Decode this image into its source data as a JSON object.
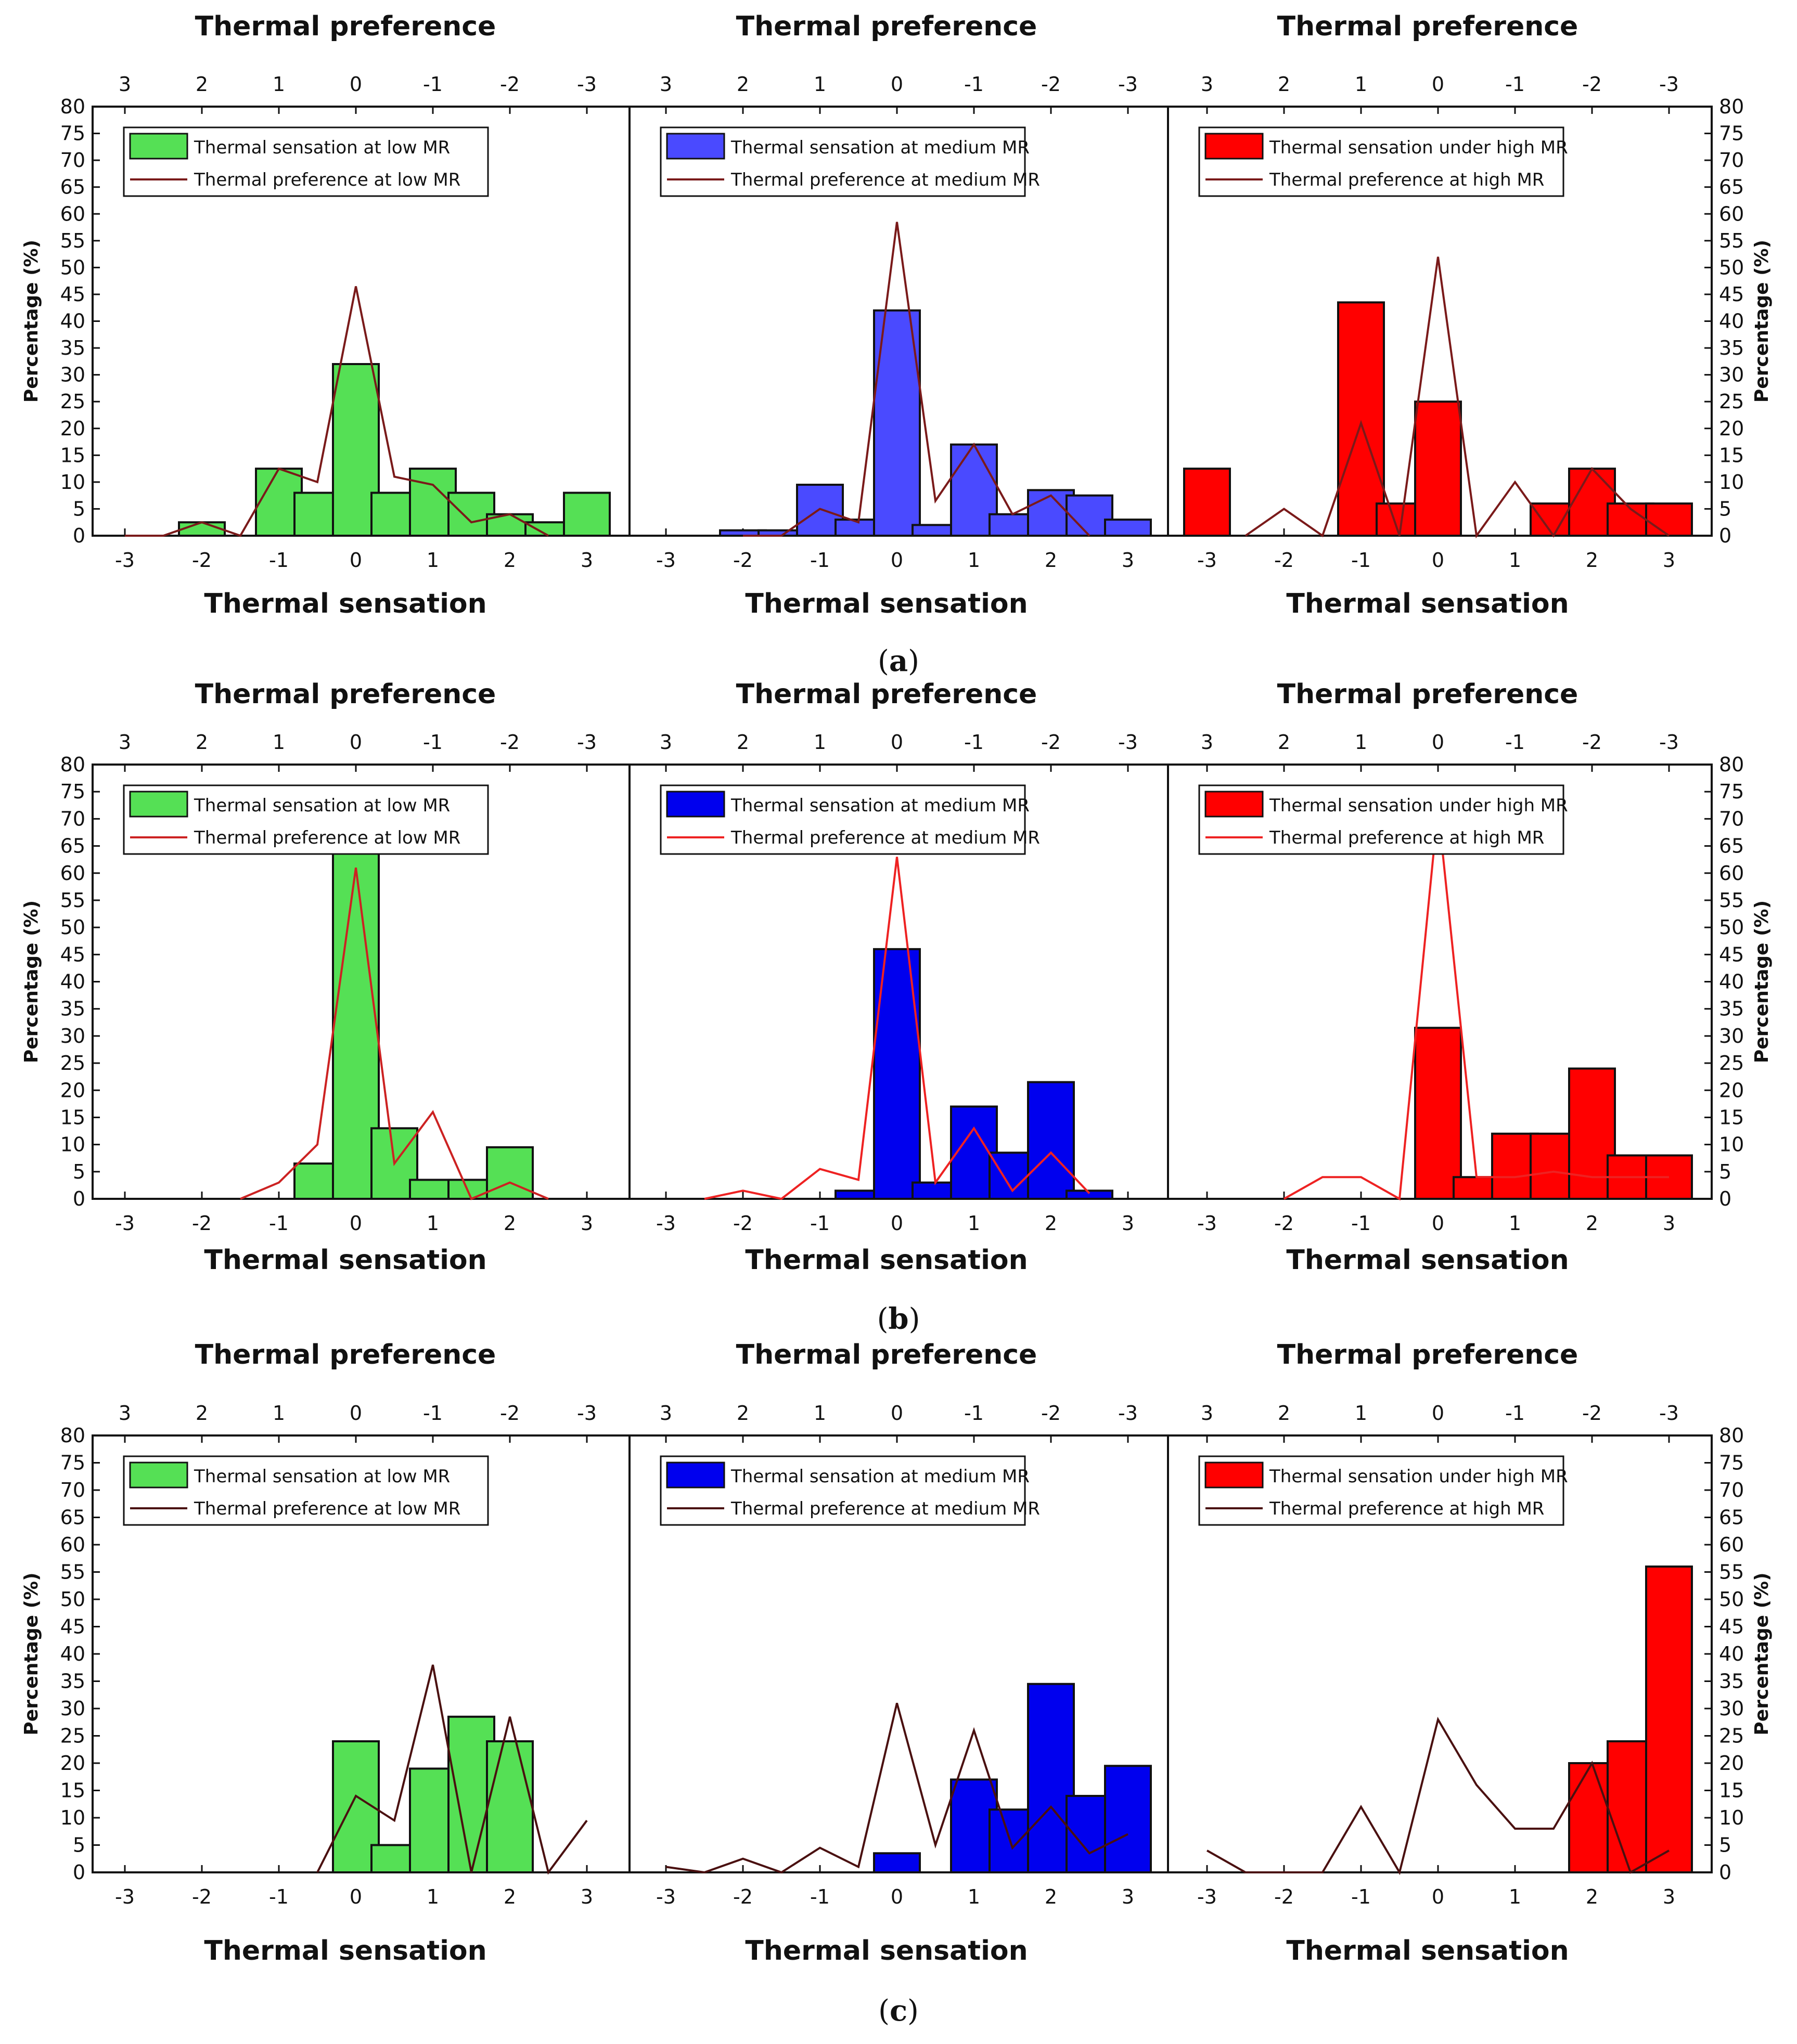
{
  "figure": {
    "top_axis_label": "Thermal preference",
    "bottom_axis_label": "Thermal sensation",
    "ylabel": "Percentage (%)",
    "sensation_ticks": [
      "-3",
      "-2",
      "-1",
      "0",
      "1",
      "2",
      "3"
    ],
    "preference_ticks": [
      "3",
      "2",
      "1",
      "0",
      "-1",
      "-2",
      "-3"
    ],
    "y_ticks": [
      "0",
      "5",
      "10",
      "15",
      "20",
      "25",
      "30",
      "35",
      "40",
      "45",
      "50",
      "55",
      "60",
      "65",
      "70",
      "75",
      "80"
    ],
    "ylim": [
      0,
      80
    ],
    "colors": {
      "low": "#55e055",
      "medium_a": "#4a4aff",
      "medium": "#0000ee",
      "high": "#ff0000",
      "line_dark": "#7a1a1a",
      "line_red": "#ee2222"
    }
  },
  "chart_data": [
    {
      "type": "bar",
      "row": "a",
      "caption": "a",
      "panels": [
        {
          "bar_label": "Thermal sensation at low MR",
          "line_label": "Thermal preference at low MR",
          "bar_color": "#55e055",
          "line_color": "#7a1a1a",
          "bars_x": [
            -2,
            -1,
            -0.5,
            0,
            0.5,
            1,
            1.5,
            2,
            2.5,
            3
          ],
          "bars_y": [
            2.5,
            12.5,
            8,
            32,
            8,
            12.5,
            8,
            4,
            2.5,
            8
          ],
          "line_x": [
            -3,
            -2.5,
            -2,
            -1.5,
            -1,
            -0.5,
            0,
            0.5,
            1,
            1.5,
            2,
            2.5
          ],
          "line_y": [
            0,
            0,
            2.5,
            0,
            12.5,
            10,
            46.5,
            11,
            9.5,
            2.5,
            4,
            0
          ]
        },
        {
          "bar_label": "Thermal sensation at medium MR",
          "line_label": "Thermal preference at medium MR",
          "bar_color": "#4a4aff",
          "line_color": "#7a1a1a",
          "bars_x": [
            -2,
            -1.5,
            -1,
            -0.5,
            0,
            0.5,
            1,
            1.5,
            2,
            2.5,
            3
          ],
          "bars_y": [
            1,
            1,
            9.5,
            3,
            42,
            2,
            17,
            4,
            8.5,
            7.5,
            3
          ],
          "line_x": [
            -2,
            -1.5,
            -1,
            -0.5,
            0,
            0.5,
            1,
            1.5,
            2,
            2.5
          ],
          "line_y": [
            0,
            0,
            5,
            2.5,
            58.5,
            6.5,
            17,
            4,
            7.5,
            0
          ]
        },
        {
          "bar_label": "Thermal sensation under high MR",
          "line_label": "Thermal preference at high MR",
          "bar_color": "#ff0000",
          "line_color": "#7a1a1a",
          "bars_x": [
            -3,
            -1,
            -0.5,
            0,
            1.5,
            2,
            2.5,
            3
          ],
          "bars_y": [
            12.5,
            43.5,
            6,
            25,
            6,
            12.5,
            6,
            6
          ],
          "line_x": [
            -2.5,
            -2,
            -1.5,
            -1,
            -0.5,
            0,
            0.5,
            1,
            1.5,
            2,
            2.5,
            3
          ],
          "line_y": [
            0,
            5,
            0,
            21,
            0,
            52,
            0,
            10,
            0,
            12.5,
            5,
            0
          ]
        }
      ]
    },
    {
      "type": "bar",
      "row": "b",
      "caption": "b",
      "panels": [
        {
          "bar_label": "Thermal sensation at low MR",
          "line_label": "Thermal preference at low MR",
          "bar_color": "#55e055",
          "line_color": "#cc2222",
          "bars_x": [
            -0.5,
            0,
            0.5,
            1,
            1.5,
            2
          ],
          "bars_y": [
            6.5,
            64,
            13,
            3.5,
            3.5,
            9.5
          ],
          "line_x": [
            -1.5,
            -1,
            -0.5,
            0,
            0.5,
            1,
            1.5,
            2,
            2.5
          ],
          "line_y": [
            0,
            3,
            10,
            61,
            6.5,
            16,
            0,
            3,
            0
          ]
        },
        {
          "bar_label": "Thermal sensation at medium MR",
          "line_label": "Thermal preference at medium MR",
          "bar_color": "#0000ee",
          "line_color": "#ee2222",
          "bars_x": [
            -0.5,
            0,
            0.5,
            1,
            1.5,
            2,
            2.5
          ],
          "bars_y": [
            1.5,
            46,
            3,
            17,
            8.5,
            21.5,
            1.5
          ],
          "line_x": [
            -2.5,
            -2,
            -1.5,
            -1,
            -0.5,
            0,
            0.5,
            1,
            1.5,
            2,
            2.5
          ],
          "line_y": [
            0,
            1.5,
            0,
            5.5,
            3.5,
            63,
            3,
            13,
            1.5,
            8.5,
            1
          ]
        },
        {
          "bar_label": "Thermal sensation under high MR",
          "line_label": "Thermal preference at high MR",
          "bar_color": "#ff0000",
          "line_color": "#ee2222",
          "bars_x": [
            0,
            0.5,
            1,
            1.5,
            2,
            2.5,
            3
          ],
          "bars_y": [
            31.5,
            4,
            12,
            12,
            24,
            8,
            8
          ],
          "line_x": [
            -2,
            -1.5,
            -1,
            -0.5,
            0,
            0.5,
            1,
            1.5,
            2,
            2.5,
            3
          ],
          "line_y": [
            0,
            4,
            4,
            0,
            72,
            4,
            4,
            5,
            4,
            4,
            4
          ]
        }
      ]
    },
    {
      "type": "bar",
      "row": "c",
      "caption": "c",
      "panels": [
        {
          "bar_label": "Thermal sensation at low MR",
          "line_label": "Thermal preference at low MR",
          "bar_color": "#55e055",
          "line_color": "#4a1010",
          "bars_x": [
            0,
            0.5,
            1,
            1.5,
            2
          ],
          "bars_y": [
            24,
            5,
            19,
            28.5,
            24
          ],
          "line_x": [
            -0.5,
            0,
            0.5,
            1,
            1.5,
            2,
            2.5,
            3
          ],
          "line_y": [
            0,
            14,
            9.5,
            38,
            0,
            28.5,
            0,
            9.5
          ]
        },
        {
          "bar_label": "Thermal sensation at medium MR",
          "line_label": "Thermal preference at medium MR",
          "bar_color": "#0000ee",
          "line_color": "#4a1010",
          "bars_x": [
            0,
            1,
            1.5,
            2,
            2.5,
            3
          ],
          "bars_y": [
            3.5,
            17,
            11.5,
            34.5,
            14,
            19.5
          ],
          "line_x": [
            -3,
            -2.5,
            -2,
            -1.5,
            -1,
            -0.5,
            0,
            0.5,
            1,
            1.5,
            2,
            2.5,
            3
          ],
          "line_y": [
            1,
            0,
            2.5,
            0,
            4.5,
            1,
            31,
            5,
            26,
            4.5,
            12,
            3.5,
            7
          ]
        },
        {
          "bar_label": "Thermal sensation under high MR",
          "line_label": "Thermal preference at high MR",
          "bar_color": "#ff0000",
          "line_color": "#4a1010",
          "bars_x": [
            2,
            2.5,
            3
          ],
          "bars_y": [
            20,
            24,
            56
          ],
          "line_x": [
            -3,
            -2.5,
            -2,
            -1.5,
            -1,
            -0.5,
            0,
            0.5,
            1,
            1.5,
            2,
            2.5,
            3
          ],
          "line_y": [
            4,
            0,
            0,
            0,
            12,
            0,
            28,
            16,
            8,
            8,
            20,
            0,
            4
          ]
        }
      ]
    }
  ]
}
